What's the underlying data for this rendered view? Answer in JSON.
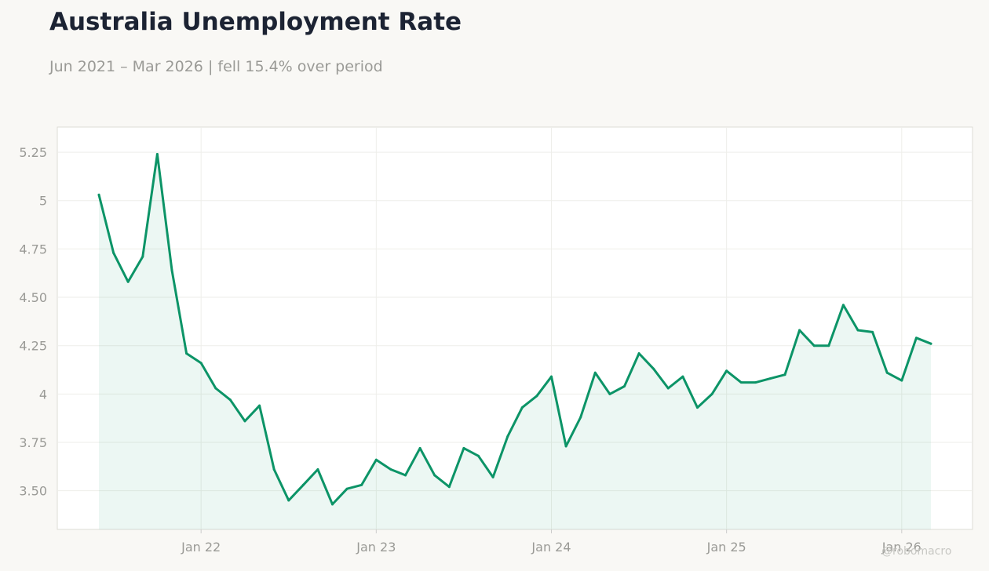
{
  "header": {
    "title": "Australia Unemployment Rate",
    "subtitle": "Jun 2021 – Mar 2026 | fell 15.4% over period"
  },
  "watermark": "@robomacro",
  "colors": {
    "line": "#0c9467",
    "fill": "#0c9467",
    "background": "#f9f8f5",
    "plot_background": "#ffffff",
    "grid": "#eeeeea",
    "title": "#1c2333",
    "muted": "#9a9a96"
  },
  "chart_data": {
    "type": "area",
    "title": "Australia Unemployment Rate",
    "subtitle": "Jun 2021 – Mar 2026 | fell 15.4% over period",
    "xlabel": "",
    "ylabel": "",
    "x_start": "2021-06",
    "x_end": "2026-03",
    "ylim": [
      3.3,
      5.38
    ],
    "grid": true,
    "legend": "none",
    "y_ticks": [
      {
        "value": 3.5,
        "label": "3.50"
      },
      {
        "value": 3.75,
        "label": "3.75"
      },
      {
        "value": 4.0,
        "label": "4"
      },
      {
        "value": 4.25,
        "label": "4.25"
      },
      {
        "value": 4.5,
        "label": "4.50"
      },
      {
        "value": 4.75,
        "label": "4.75"
      },
      {
        "value": 5.0,
        "label": "5"
      },
      {
        "value": 5.25,
        "label": "5.25"
      }
    ],
    "x_ticks": [
      {
        "value": "2022-01",
        "label": "Jan 22"
      },
      {
        "value": "2023-01",
        "label": "Jan 23"
      },
      {
        "value": "2024-01",
        "label": "Jan 24"
      },
      {
        "value": "2025-01",
        "label": "Jan 25"
      },
      {
        "value": "2026-01",
        "label": "Jan 26"
      }
    ],
    "x": [
      "2021-06",
      "2021-07",
      "2021-08",
      "2021-09",
      "2021-10",
      "2021-11",
      "2021-12",
      "2022-01",
      "2022-02",
      "2022-03",
      "2022-04",
      "2022-05",
      "2022-06",
      "2022-07",
      "2022-08",
      "2022-09",
      "2022-10",
      "2022-11",
      "2022-12",
      "2023-01",
      "2023-02",
      "2023-03",
      "2023-04",
      "2023-05",
      "2023-06",
      "2023-07",
      "2023-08",
      "2023-09",
      "2023-10",
      "2023-11",
      "2023-12",
      "2024-01",
      "2024-02",
      "2024-03",
      "2024-04",
      "2024-05",
      "2024-06",
      "2024-07",
      "2024-08",
      "2024-09",
      "2024-10",
      "2024-11",
      "2024-12",
      "2025-01",
      "2025-02",
      "2025-03",
      "2025-04",
      "2025-05",
      "2025-06",
      "2025-07",
      "2025-08",
      "2025-09",
      "2025-10",
      "2025-11",
      "2025-12",
      "2026-01",
      "2026-02",
      "2026-03"
    ],
    "series": [
      {
        "values": [
          5.03,
          4.73,
          4.58,
          4.71,
          5.24,
          4.64,
          4.21,
          4.16,
          4.03,
          3.97,
          3.86,
          3.94,
          3.61,
          3.45,
          3.53,
          3.61,
          3.43,
          3.51,
          3.53,
          3.66,
          3.61,
          3.58,
          3.72,
          3.58,
          3.52,
          3.72,
          3.68,
          3.57,
          3.78,
          3.93,
          3.99,
          4.09,
          3.73,
          3.88,
          4.11,
          4.0,
          4.04,
          4.21,
          4.13,
          4.03,
          4.09,
          3.93,
          4.0,
          4.12,
          4.06,
          4.06,
          4.08,
          4.1,
          4.33,
          4.25,
          4.25,
          4.46,
          4.33,
          4.32,
          4.11,
          4.07,
          4.29,
          4.26
        ]
      }
    ]
  }
}
